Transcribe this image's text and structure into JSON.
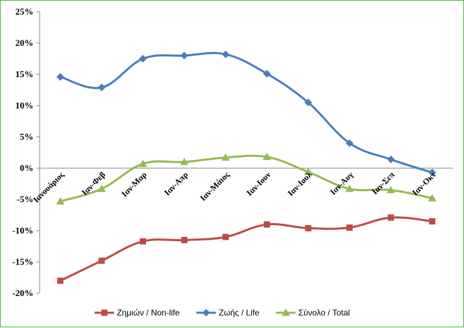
{
  "chart_data": {
    "type": "line",
    "title": "",
    "xlabel": "",
    "ylabel": "",
    "ylim": [
      -20,
      25
    ],
    "yticks": [
      "-20%",
      "-15%",
      "-10%",
      "-5%",
      "0%",
      "5%",
      "10%",
      "15%",
      "20%",
      "25%"
    ],
    "categories": [
      "Ιανουάριος",
      "Ιαν-Φεβ",
      "Ιαν-Μαρ",
      "Ιαν-Απρ",
      "Ιαν-Μάιος",
      "Ιαν-Ιουν",
      "Ιαν-Ιουλ",
      "Ιαν-Αυγ",
      "Ιαν-Σεπ",
      "Ιαν-Οκτ"
    ],
    "series": [
      {
        "name": "Ζημιών / Non-life",
        "color": "#be4b48",
        "marker": "square",
        "values": [
          -18.0,
          -14.8,
          -11.7,
          -11.5,
          -11.0,
          -9.0,
          -9.6,
          -9.5,
          -7.9,
          -8.5
        ]
      },
      {
        "name": "Ζωής / Life",
        "color": "#4a7ebb",
        "marker": "diamond",
        "values": [
          14.6,
          12.9,
          17.5,
          18.0,
          18.2,
          15.1,
          10.5,
          4.0,
          1.4,
          -0.7
        ]
      },
      {
        "name": "Σύνολο / Total",
        "color": "#98b954",
        "marker": "triangle",
        "values": [
          -5.3,
          -3.3,
          0.7,
          1.0,
          1.7,
          1.8,
          -0.6,
          -3.3,
          -3.5,
          -4.8
        ]
      }
    ],
    "legend_position": "bottom"
  }
}
